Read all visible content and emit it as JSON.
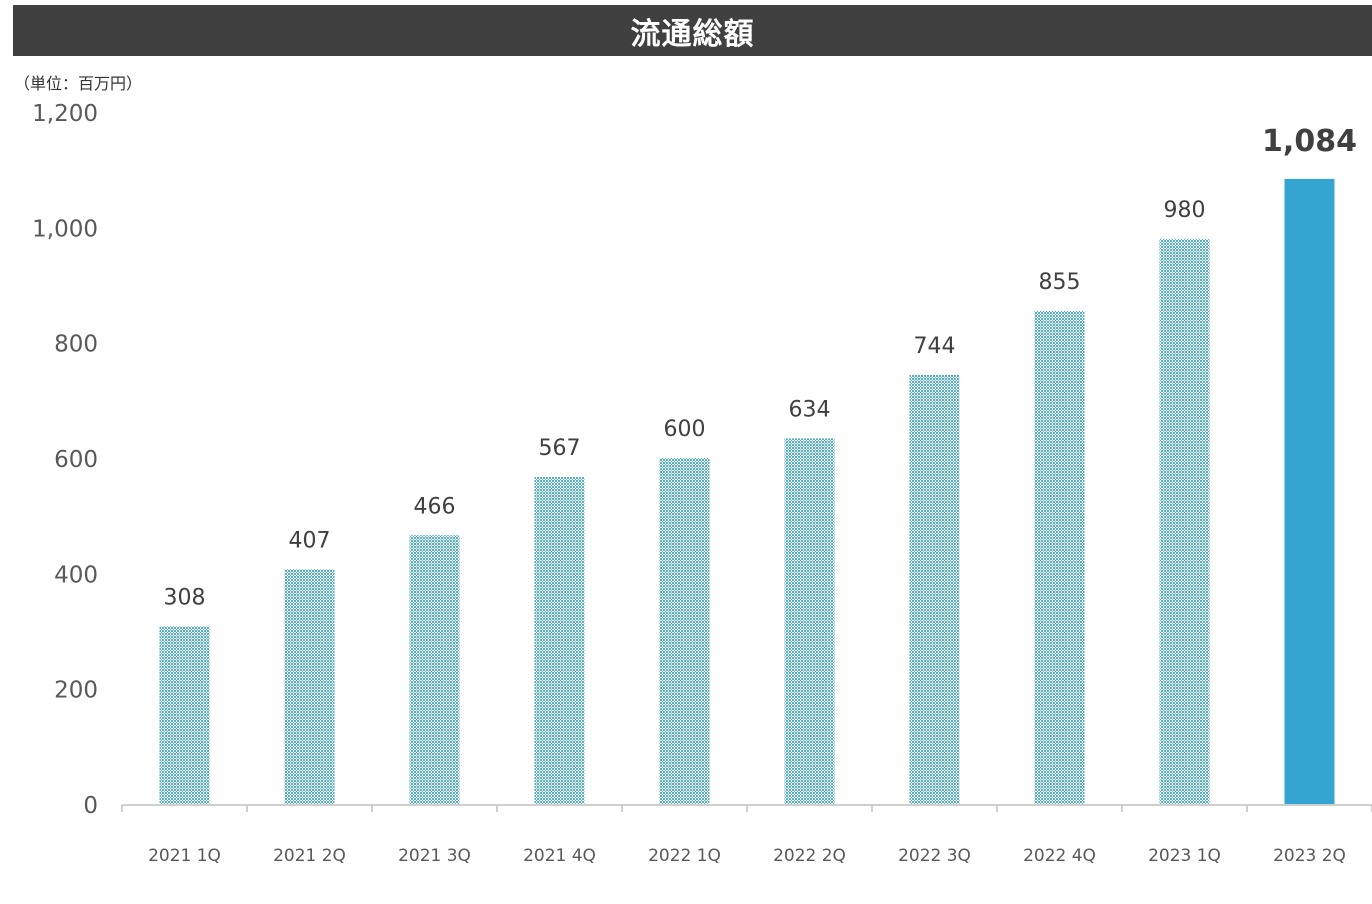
{
  "colors": {
    "title_bg": "#404040",
    "title_text": "#ffffff",
    "bar_hatched": "#4fb0c6",
    "bar_solid": "#34a5d1",
    "axis": "#bfbfbf",
    "tick_text": "#595959",
    "label_text": "#404040"
  },
  "chart_data": {
    "type": "bar",
    "title": "流通総額",
    "unit": "（単位：百万円）",
    "categories": [
      "2021 1Q",
      "2021 2Q",
      "2021 3Q",
      "2021 4Q",
      "2022 1Q",
      "2022 2Q",
      "2022 3Q",
      "2022 4Q",
      "2023 1Q",
      "2023 2Q"
    ],
    "values": [
      308,
      407,
      466,
      567,
      600,
      634,
      744,
      855,
      980,
      1084
    ],
    "value_labels": [
      "308",
      "407",
      "466",
      "567",
      "600",
      "634",
      "744",
      "855",
      "980",
      "1,084"
    ],
    "highlight_index": 9,
    "ylim": [
      0,
      1200
    ],
    "yticks": [
      0,
      200,
      400,
      600,
      800,
      1000,
      1200
    ],
    "ytick_labels": [
      "0",
      "200",
      "400",
      "600",
      "800",
      "1,000",
      "1,200"
    ],
    "grid": false,
    "legend": "none"
  }
}
